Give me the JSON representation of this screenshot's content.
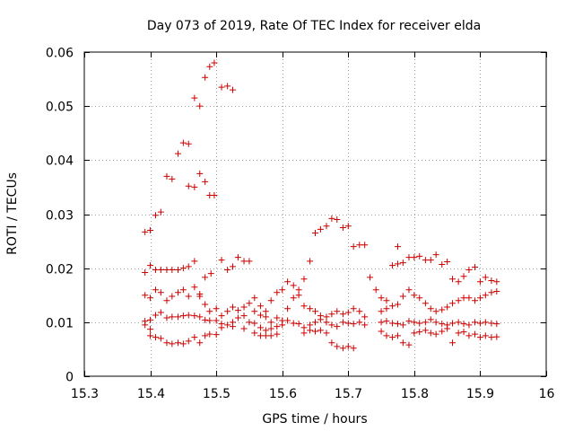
{
  "chart_data": {
    "type": "scatter",
    "title": "Day 073 of 2019, Rate Of TEC Index for receiver elda",
    "xlabel": "GPS time / hours",
    "ylabel": "ROTI / TECUs",
    "xlim": [
      15.3,
      16.0
    ],
    "ylim": [
      0,
      0.06
    ],
    "grid": true,
    "xticks": [
      15.3,
      15.4,
      15.5,
      15.6,
      15.7,
      15.8,
      15.9,
      16.0
    ],
    "xtick_labels": [
      "15.3",
      "15.4",
      "15.5",
      "15.6",
      "15.7",
      "15.8",
      "15.9",
      "16"
    ],
    "yticks": [
      0,
      0.01,
      0.02,
      0.03,
      0.04,
      0.05,
      0.06
    ],
    "ytick_labels": [
      "0",
      "0.01",
      "0.02",
      "0.03",
      "0.04",
      "0.05",
      "0.06"
    ],
    "marker": "+",
    "marker_color": "#cc0000",
    "series": [
      {
        "name": "ROTI",
        "points": [
          [
            15.392,
            0.0267
          ],
          [
            15.4,
            0.027
          ],
          [
            15.408,
            0.0298
          ],
          [
            15.416,
            0.0304
          ],
          [
            15.425,
            0.037
          ],
          [
            15.433,
            0.0365
          ],
          [
            15.442,
            0.0412
          ],
          [
            15.45,
            0.0432
          ],
          [
            15.458,
            0.043
          ],
          [
            15.458,
            0.0352
          ],
          [
            15.467,
            0.035
          ],
          [
            15.467,
            0.0515
          ],
          [
            15.475,
            0.05
          ],
          [
            15.475,
            0.0375
          ],
          [
            15.483,
            0.0553
          ],
          [
            15.483,
            0.036
          ],
          [
            15.49,
            0.0573
          ],
          [
            15.49,
            0.0335
          ],
          [
            15.497,
            0.058
          ],
          [
            15.497,
            0.0335
          ],
          [
            15.508,
            0.0535
          ],
          [
            15.517,
            0.0537
          ],
          [
            15.525,
            0.053
          ],
          [
            15.392,
            0.0192
          ],
          [
            15.4,
            0.0205
          ],
          [
            15.408,
            0.0197
          ],
          [
            15.416,
            0.0197
          ],
          [
            15.425,
            0.0197
          ],
          [
            15.433,
            0.0197
          ],
          [
            15.442,
            0.0197
          ],
          [
            15.45,
            0.02
          ],
          [
            15.458,
            0.0203
          ],
          [
            15.467,
            0.0213
          ],
          [
            15.483,
            0.0183
          ],
          [
            15.492,
            0.019
          ],
          [
            15.508,
            0.0215
          ],
          [
            15.517,
            0.0197
          ],
          [
            15.525,
            0.0203
          ],
          [
            15.533,
            0.022
          ],
          [
            15.542,
            0.0213
          ],
          [
            15.55,
            0.0213
          ],
          [
            15.392,
            0.015
          ],
          [
            15.4,
            0.0145
          ],
          [
            15.408,
            0.016
          ],
          [
            15.416,
            0.0155
          ],
          [
            15.425,
            0.014
          ],
          [
            15.433,
            0.0148
          ],
          [
            15.442,
            0.0155
          ],
          [
            15.45,
            0.016
          ],
          [
            15.458,
            0.0148
          ],
          [
            15.467,
            0.0165
          ],
          [
            15.475,
            0.0152
          ],
          [
            15.475,
            0.0148
          ],
          [
            15.483,
            0.0133
          ],
          [
            15.49,
            0.012
          ],
          [
            15.5,
            0.0125
          ],
          [
            15.508,
            0.0112
          ],
          [
            15.517,
            0.012
          ],
          [
            15.525,
            0.0128
          ],
          [
            15.533,
            0.0122
          ],
          [
            15.542,
            0.0128
          ],
          [
            15.55,
            0.0135
          ],
          [
            15.392,
            0.0102
          ],
          [
            15.392,
            0.0095
          ],
          [
            15.4,
            0.0104
          ],
          [
            15.408,
            0.0113
          ],
          [
            15.416,
            0.0118
          ],
          [
            15.425,
            0.0108
          ],
          [
            15.433,
            0.011
          ],
          [
            15.442,
            0.011
          ],
          [
            15.45,
            0.0112
          ],
          [
            15.458,
            0.0113
          ],
          [
            15.467,
            0.0112
          ],
          [
            15.475,
            0.011
          ],
          [
            15.483,
            0.0104
          ],
          [
            15.49,
            0.0103
          ],
          [
            15.5,
            0.0103
          ],
          [
            15.508,
            0.0097
          ],
          [
            15.517,
            0.0095
          ],
          [
            15.525,
            0.01
          ],
          [
            15.533,
            0.0108
          ],
          [
            15.542,
            0.0112
          ],
          [
            15.55,
            0.01
          ],
          [
            15.4,
            0.0087
          ],
          [
            15.4,
            0.0075
          ],
          [
            15.408,
            0.0072
          ],
          [
            15.416,
            0.007
          ],
          [
            15.425,
            0.0062
          ],
          [
            15.433,
            0.006
          ],
          [
            15.442,
            0.0062
          ],
          [
            15.45,
            0.006
          ],
          [
            15.458,
            0.0065
          ],
          [
            15.467,
            0.0072
          ],
          [
            15.475,
            0.0062
          ],
          [
            15.483,
            0.0075
          ],
          [
            15.49,
            0.0078
          ],
          [
            15.5,
            0.0077
          ],
          [
            15.508,
            0.009
          ],
          [
            15.525,
            0.0092
          ],
          [
            15.542,
            0.0088
          ],
          [
            15.558,
            0.0145
          ],
          [
            15.567,
            0.013
          ],
          [
            15.575,
            0.012
          ],
          [
            15.583,
            0.014
          ],
          [
            15.592,
            0.0155
          ],
          [
            15.6,
            0.016
          ],
          [
            15.608,
            0.0175
          ],
          [
            15.617,
            0.0168
          ],
          [
            15.625,
            0.016
          ],
          [
            15.633,
            0.018
          ],
          [
            15.642,
            0.0213
          ],
          [
            15.65,
            0.0265
          ],
          [
            15.658,
            0.0272
          ],
          [
            15.667,
            0.0278
          ],
          [
            15.675,
            0.0292
          ],
          [
            15.683,
            0.029
          ],
          [
            15.692,
            0.0275
          ],
          [
            15.7,
            0.0278
          ],
          [
            15.708,
            0.024
          ],
          [
            15.717,
            0.0243
          ],
          [
            15.725,
            0.0243
          ],
          [
            15.733,
            0.0183
          ],
          [
            15.742,
            0.016
          ],
          [
            15.558,
            0.012
          ],
          [
            15.567,
            0.0113
          ],
          [
            15.575,
            0.011
          ],
          [
            15.583,
            0.01
          ],
          [
            15.592,
            0.0108
          ],
          [
            15.6,
            0.0103
          ],
          [
            15.608,
            0.0125
          ],
          [
            15.617,
            0.0145
          ],
          [
            15.625,
            0.015
          ],
          [
            15.633,
            0.013
          ],
          [
            15.642,
            0.0125
          ],
          [
            15.65,
            0.012
          ],
          [
            15.658,
            0.0112
          ],
          [
            15.667,
            0.011
          ],
          [
            15.675,
            0.0115
          ],
          [
            15.683,
            0.012
          ],
          [
            15.692,
            0.0115
          ],
          [
            15.7,
            0.0118
          ],
          [
            15.708,
            0.0125
          ],
          [
            15.717,
            0.012
          ],
          [
            15.725,
            0.011
          ],
          [
            15.558,
            0.0098
          ],
          [
            15.567,
            0.009
          ],
          [
            15.575,
            0.0085
          ],
          [
            15.583,
            0.0088
          ],
          [
            15.592,
            0.0092
          ],
          [
            15.6,
            0.0095
          ],
          [
            15.608,
            0.0103
          ],
          [
            15.617,
            0.0098
          ],
          [
            15.625,
            0.0097
          ],
          [
            15.633,
            0.009
          ],
          [
            15.642,
            0.0095
          ],
          [
            15.65,
            0.01
          ],
          [
            15.658,
            0.0105
          ],
          [
            15.667,
            0.01
          ],
          [
            15.675,
            0.0095
          ],
          [
            15.683,
            0.0092
          ],
          [
            15.692,
            0.01
          ],
          [
            15.7,
            0.0098
          ],
          [
            15.708,
            0.0097
          ],
          [
            15.717,
            0.01
          ],
          [
            15.725,
            0.0095
          ],
          [
            15.558,
            0.008
          ],
          [
            15.567,
            0.0075
          ],
          [
            15.575,
            0.0075
          ],
          [
            15.583,
            0.0075
          ],
          [
            15.592,
            0.0078
          ],
          [
            15.633,
            0.008
          ],
          [
            15.642,
            0.0085
          ],
          [
            15.65,
            0.0083
          ],
          [
            15.658,
            0.0085
          ],
          [
            15.667,
            0.008
          ],
          [
            15.675,
            0.0062
          ],
          [
            15.683,
            0.0055
          ],
          [
            15.692,
            0.0052
          ],
          [
            15.7,
            0.0055
          ],
          [
            15.708,
            0.0052
          ],
          [
            15.75,
            0.0145
          ],
          [
            15.758,
            0.014
          ],
          [
            15.767,
            0.0205
          ],
          [
            15.775,
            0.0208
          ],
          [
            15.775,
            0.024
          ],
          [
            15.783,
            0.021
          ],
          [
            15.792,
            0.022
          ],
          [
            15.8,
            0.022
          ],
          [
            15.808,
            0.0222
          ],
          [
            15.817,
            0.0215
          ],
          [
            15.825,
            0.0215
          ],
          [
            15.833,
            0.0225
          ],
          [
            15.842,
            0.0207
          ],
          [
            15.85,
            0.0212
          ],
          [
            15.858,
            0.018
          ],
          [
            15.867,
            0.0175
          ],
          [
            15.875,
            0.0185
          ],
          [
            15.883,
            0.0197
          ],
          [
            15.892,
            0.0202
          ],
          [
            15.9,
            0.0175
          ],
          [
            15.908,
            0.0183
          ],
          [
            15.917,
            0.0177
          ],
          [
            15.925,
            0.0175
          ],
          [
            15.75,
            0.012
          ],
          [
            15.758,
            0.0125
          ],
          [
            15.767,
            0.013
          ],
          [
            15.775,
            0.0133
          ],
          [
            15.783,
            0.0148
          ],
          [
            15.792,
            0.016
          ],
          [
            15.8,
            0.015
          ],
          [
            15.808,
            0.0145
          ],
          [
            15.817,
            0.0135
          ],
          [
            15.825,
            0.0125
          ],
          [
            15.833,
            0.012
          ],
          [
            15.842,
            0.0123
          ],
          [
            15.85,
            0.0128
          ],
          [
            15.858,
            0.0135
          ],
          [
            15.867,
            0.014
          ],
          [
            15.875,
            0.0145
          ],
          [
            15.883,
            0.0145
          ],
          [
            15.892,
            0.014
          ],
          [
            15.9,
            0.0145
          ],
          [
            15.908,
            0.015
          ],
          [
            15.917,
            0.0155
          ],
          [
            15.925,
            0.0157
          ],
          [
            15.75,
            0.01
          ],
          [
            15.758,
            0.0102
          ],
          [
            15.767,
            0.0098
          ],
          [
            15.775,
            0.0097
          ],
          [
            15.783,
            0.0095
          ],
          [
            15.792,
            0.0102
          ],
          [
            15.8,
            0.01
          ],
          [
            15.808,
            0.0098
          ],
          [
            15.817,
            0.01
          ],
          [
            15.825,
            0.0105
          ],
          [
            15.833,
            0.01
          ],
          [
            15.842,
            0.0097
          ],
          [
            15.85,
            0.0095
          ],
          [
            15.858,
            0.0098
          ],
          [
            15.867,
            0.01
          ],
          [
            15.875,
            0.0097
          ],
          [
            15.883,
            0.0095
          ],
          [
            15.892,
            0.01
          ],
          [
            15.9,
            0.0098
          ],
          [
            15.908,
            0.01
          ],
          [
            15.917,
            0.0098
          ],
          [
            15.925,
            0.0097
          ],
          [
            15.75,
            0.0083
          ],
          [
            15.758,
            0.0075
          ],
          [
            15.767,
            0.0072
          ],
          [
            15.775,
            0.0075
          ],
          [
            15.783,
            0.0062
          ],
          [
            15.792,
            0.0058
          ],
          [
            15.8,
            0.008
          ],
          [
            15.808,
            0.0082
          ],
          [
            15.817,
            0.0085
          ],
          [
            15.825,
            0.008
          ],
          [
            15.833,
            0.0078
          ],
          [
            15.842,
            0.0083
          ],
          [
            15.85,
            0.0088
          ],
          [
            15.858,
            0.0062
          ],
          [
            15.867,
            0.008
          ],
          [
            15.875,
            0.0082
          ],
          [
            15.883,
            0.0075
          ],
          [
            15.892,
            0.0078
          ],
          [
            15.9,
            0.0072
          ],
          [
            15.908,
            0.0075
          ],
          [
            15.917,
            0.0072
          ],
          [
            15.925,
            0.0073
          ]
        ]
      }
    ]
  }
}
